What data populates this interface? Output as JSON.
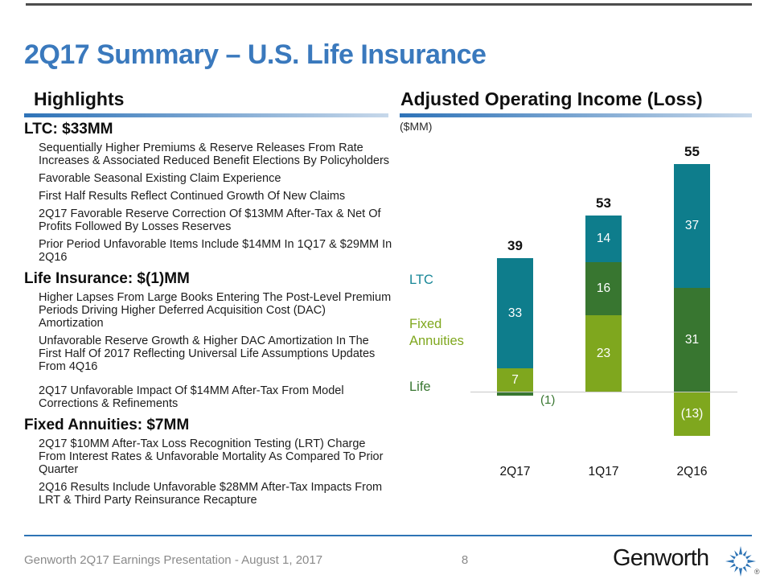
{
  "slide": {
    "title": "2Q17 Summary – U.S. Life Insurance",
    "footer": {
      "left_text": "Genworth 2Q17 Earnings Presentation - August 1, 2017",
      "page_number": "8",
      "logo_text": "Genworth",
      "registered_mark": "®"
    }
  },
  "highlights": {
    "header": "Highlights",
    "sections": [
      {
        "title": "LTC: $33MM",
        "bullets": [
          "Sequentially Higher Premiums & Reserve Releases From Rate\nIncreases & Associated Reduced Benefit Elections By Policyholders",
          "Favorable Seasonal Existing Claim Experience",
          "First Half Results Reflect Continued Growth Of New Claims",
          "2Q17 Favorable Reserve Correction Of $13MM After-Tax & Net Of\nProfits Followed By Losses Reserves",
          "Prior Period Unfavorable Items Include $14MM In 1Q17 & $29MM In\n2Q16"
        ]
      },
      {
        "title": "Life Insurance: $(1)MM",
        "bullets": [
          "Higher Lapses From Large Books Entering The Post-Level Premium\nPeriods Driving Higher Deferred Acquisition Cost (DAC)\nAmortization",
          "Unfavorable Reserve Growth & Higher DAC Amortization In The\nFirst Half Of 2017 Reflecting Universal Life Assumptions Updates\nFrom 4Q16",
          "2Q17 Unfavorable Impact Of $14MM After-Tax From Model\nCorrections & Refinements"
        ]
      },
      {
        "title": "Fixed Annuities: $7MM",
        "bullets": [
          "2Q17 $10MM After-Tax Loss Recognition Testing (LRT) Charge\nFrom Interest Rates & Unfavorable Mortality As Compared To Prior\nQuarter",
          "2Q16 Results Include Unfavorable $28MM After-Tax Impacts From\nLRT & Third Party Reinsurance Recapture"
        ]
      }
    ]
  },
  "chart_panel": {
    "header": "Adjusted Operating Income (Loss)",
    "units_label": "($MM)"
  },
  "chart_data": {
    "type": "bar",
    "stacked": true,
    "title": "Adjusted Operating Income (Loss)",
    "units": "$MM",
    "categories": [
      "2Q17",
      "1Q17",
      "2Q16"
    ],
    "series": [
      {
        "name": "Fixed Annuities",
        "color": "#7fa71e",
        "values": [
          7,
          23,
          -13
        ]
      },
      {
        "name": "Life",
        "color": "#387630",
        "values": [
          -1,
          16,
          31
        ]
      },
      {
        "name": "LTC",
        "color": "#0e7d8c",
        "values": [
          33,
          14,
          37
        ]
      }
    ],
    "totals": [
      "39",
      "53",
      "55"
    ],
    "segment_labels": [
      [
        "7",
        "(1)",
        "33"
      ],
      [
        "23",
        "16",
        "14"
      ],
      [
        "(13)",
        "31",
        "37"
      ]
    ],
    "label_placements": [
      [
        "inside",
        "right",
        "inside"
      ],
      [
        "inside",
        "inside",
        "inside"
      ],
      [
        "inside",
        "inside",
        "inside"
      ]
    ],
    "legend": [
      {
        "label": "LTC",
        "color": "#178697"
      },
      {
        "label": "Fixed\nAnnuities",
        "color": "#7fa71e"
      },
      {
        "label": "Life",
        "color": "#387630"
      }
    ],
    "legend_position": "left",
    "zero_axis_line": true,
    "grid": false
  }
}
